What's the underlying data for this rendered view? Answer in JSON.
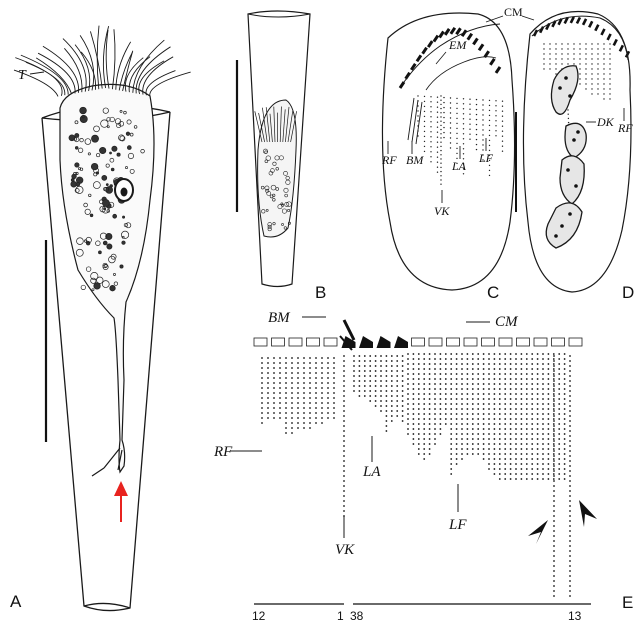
{
  "figure": {
    "panels": {
      "a": "A",
      "b": "B",
      "c": "C",
      "d": "D",
      "e": "E"
    },
    "labels": {
      "t": "T",
      "cm_c": "CM",
      "em": "EM",
      "dk": "DK",
      "rf_c": "RF",
      "bm_c": "BM",
      "la_c": "LA",
      "lf_c": "LF",
      "vk_c": "VK",
      "rf_d": "RF",
      "bm_e": "BM",
      "cm_e": "CM",
      "rf_e": "RF",
      "la_e": "LA",
      "lf_e": "LF",
      "vk_e": "VK"
    },
    "scale_numbers": {
      "left_start": "12",
      "left_end": "1",
      "right_start": "38",
      "right_end": "13"
    },
    "colors": {
      "ink": "#1a1a1a",
      "arrow": "#e8231f",
      "background": "#ffffff"
    }
  }
}
